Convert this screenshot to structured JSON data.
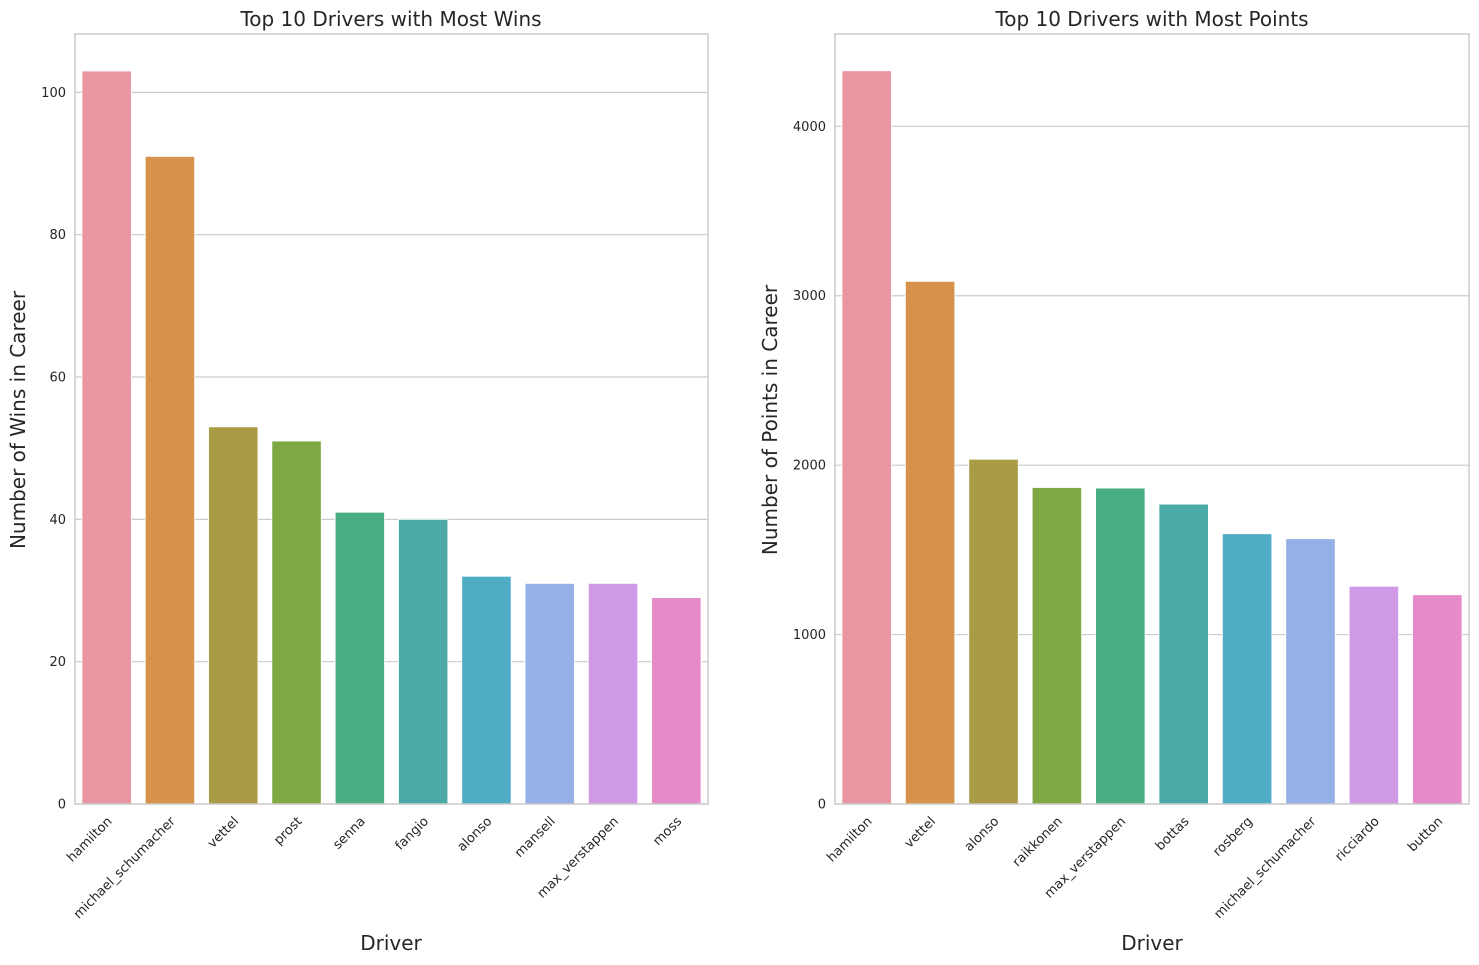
{
  "chart_data": [
    {
      "type": "bar",
      "title": "Top 10 Drivers with Most Wins",
      "xlabel": "Driver",
      "ylabel": "Number of Wins in Career",
      "categories": [
        "hamilton",
        "michael_schumacher",
        "vettel",
        "prost",
        "senna",
        "fangio",
        "alonso",
        "mansell",
        "max_verstappen",
        "moss"
      ],
      "values": [
        103,
        91,
        53,
        51,
        41,
        40,
        32,
        31,
        31,
        29
      ],
      "ylim": [
        0,
        108.2
      ],
      "yticks": [
        0,
        20,
        40,
        60,
        80,
        100
      ],
      "grid": "horizontal",
      "colors": [
        "#ea96a2",
        "#d6914b",
        "#a99c45",
        "#7ea844",
        "#4aae83",
        "#4baaa6",
        "#4eacc5",
        "#95b0e6",
        "#cf99e6",
        "#e68bc8"
      ]
    },
    {
      "type": "bar",
      "title": "Top 10 Drivers with Most Points",
      "xlabel": "Driver",
      "ylabel": "Number of Points in Career",
      "categories": [
        "hamilton",
        "vettel",
        "alonso",
        "raikkonen",
        "max_verstappen",
        "bottas",
        "rosberg",
        "michael_schumacher",
        "ricciardo",
        "button"
      ],
      "values": [
        4328,
        3085,
        2035,
        1868,
        1865,
        1770,
        1595,
        1566,
        1285,
        1235
      ],
      "ylim": [
        0,
        4545
      ],
      "yticks": [
        0,
        1000,
        2000,
        3000,
        4000
      ],
      "grid": "horizontal",
      "colors": [
        "#ea96a2",
        "#d6914b",
        "#a99c45",
        "#7ea844",
        "#4aae83",
        "#4baaa6",
        "#4eacc5",
        "#95b0e6",
        "#cf99e6",
        "#e68bc8"
      ]
    }
  ]
}
